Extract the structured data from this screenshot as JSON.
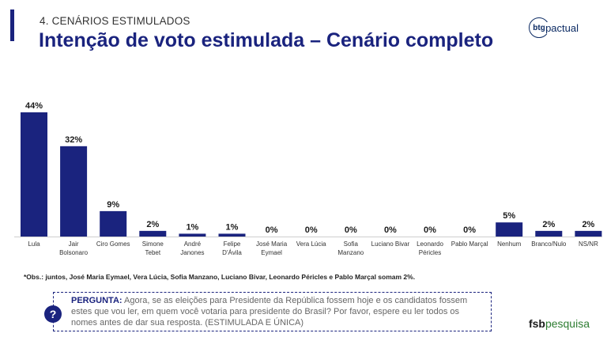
{
  "header": {
    "section": "4. CENÁRIOS ESTIMULADOS",
    "title": "Intenção de voto estimulada – Cenário completo"
  },
  "logos": {
    "btg_mark": "btg",
    "btg_text": "pactual",
    "fsb_main": "fsb",
    "fsb_sub": "pesquisa"
  },
  "colors": {
    "bar": "#1a237e",
    "accent": "#1a237e"
  },
  "chart_data": {
    "type": "bar",
    "categories": [
      "Lula",
      "Jair Bolsonaro",
      "Ciro Gomes",
      "Simone Tebet",
      "André Janones",
      "Felipe D'Ávila",
      "José Maria Eymael",
      "Vera Lúcia",
      "Sofia Manzano",
      "Luciano Bivar",
      "Leonardo Péricles",
      "Pablo Marçal",
      "Nenhum",
      "Branco/Nulo",
      "NS/NR"
    ],
    "category_lines": [
      [
        "Lula"
      ],
      [
        "Jair",
        "Bolsonaro"
      ],
      [
        "Ciro Gomes"
      ],
      [
        "Simone",
        "Tebet"
      ],
      [
        "André",
        "Janones"
      ],
      [
        "Felipe",
        "D'Ávila"
      ],
      [
        "José Maria",
        "Eymael"
      ],
      [
        "Vera Lúcia"
      ],
      [
        "Sofia",
        "Manzano"
      ],
      [
        "Luciano Bivar"
      ],
      [
        "Leonardo",
        "Péricles"
      ],
      [
        "Pablo Marçal"
      ],
      [
        "Nenhum"
      ],
      [
        "Branco/Nulo"
      ],
      [
        "NS/NR"
      ]
    ],
    "values": [
      44,
      32,
      9,
      2,
      1,
      1,
      0,
      0,
      0,
      0,
      0,
      0,
      5,
      2,
      2
    ],
    "labels": [
      "44%",
      "32%",
      "9%",
      "2%",
      "1%",
      "1%",
      "0%",
      "0%",
      "0%",
      "0%",
      "0%",
      "0%",
      "5%",
      "2%",
      "2%"
    ],
    "ylim": [
      0,
      44
    ],
    "grid": false
  },
  "footnote": "*Obs.: juntos, José Maria Eymael, Vera Lúcia, Sofia Manzano, Luciano Bivar, Leonardo Péricles e Pablo Marçal somam 2%.",
  "question": {
    "icon": "question-mark-icon",
    "icon_glyph": "?",
    "label": "PERGUNTA:",
    "text": "Agora, se as eleições para Presidente da República fossem hoje e os candidatos fossem estes que vou ler, em quem você votaria para presidente do Brasil? Por favor, espere eu ler todos os nomes antes de dar sua resposta. (ESTIMULADA E ÚNICA)"
  }
}
